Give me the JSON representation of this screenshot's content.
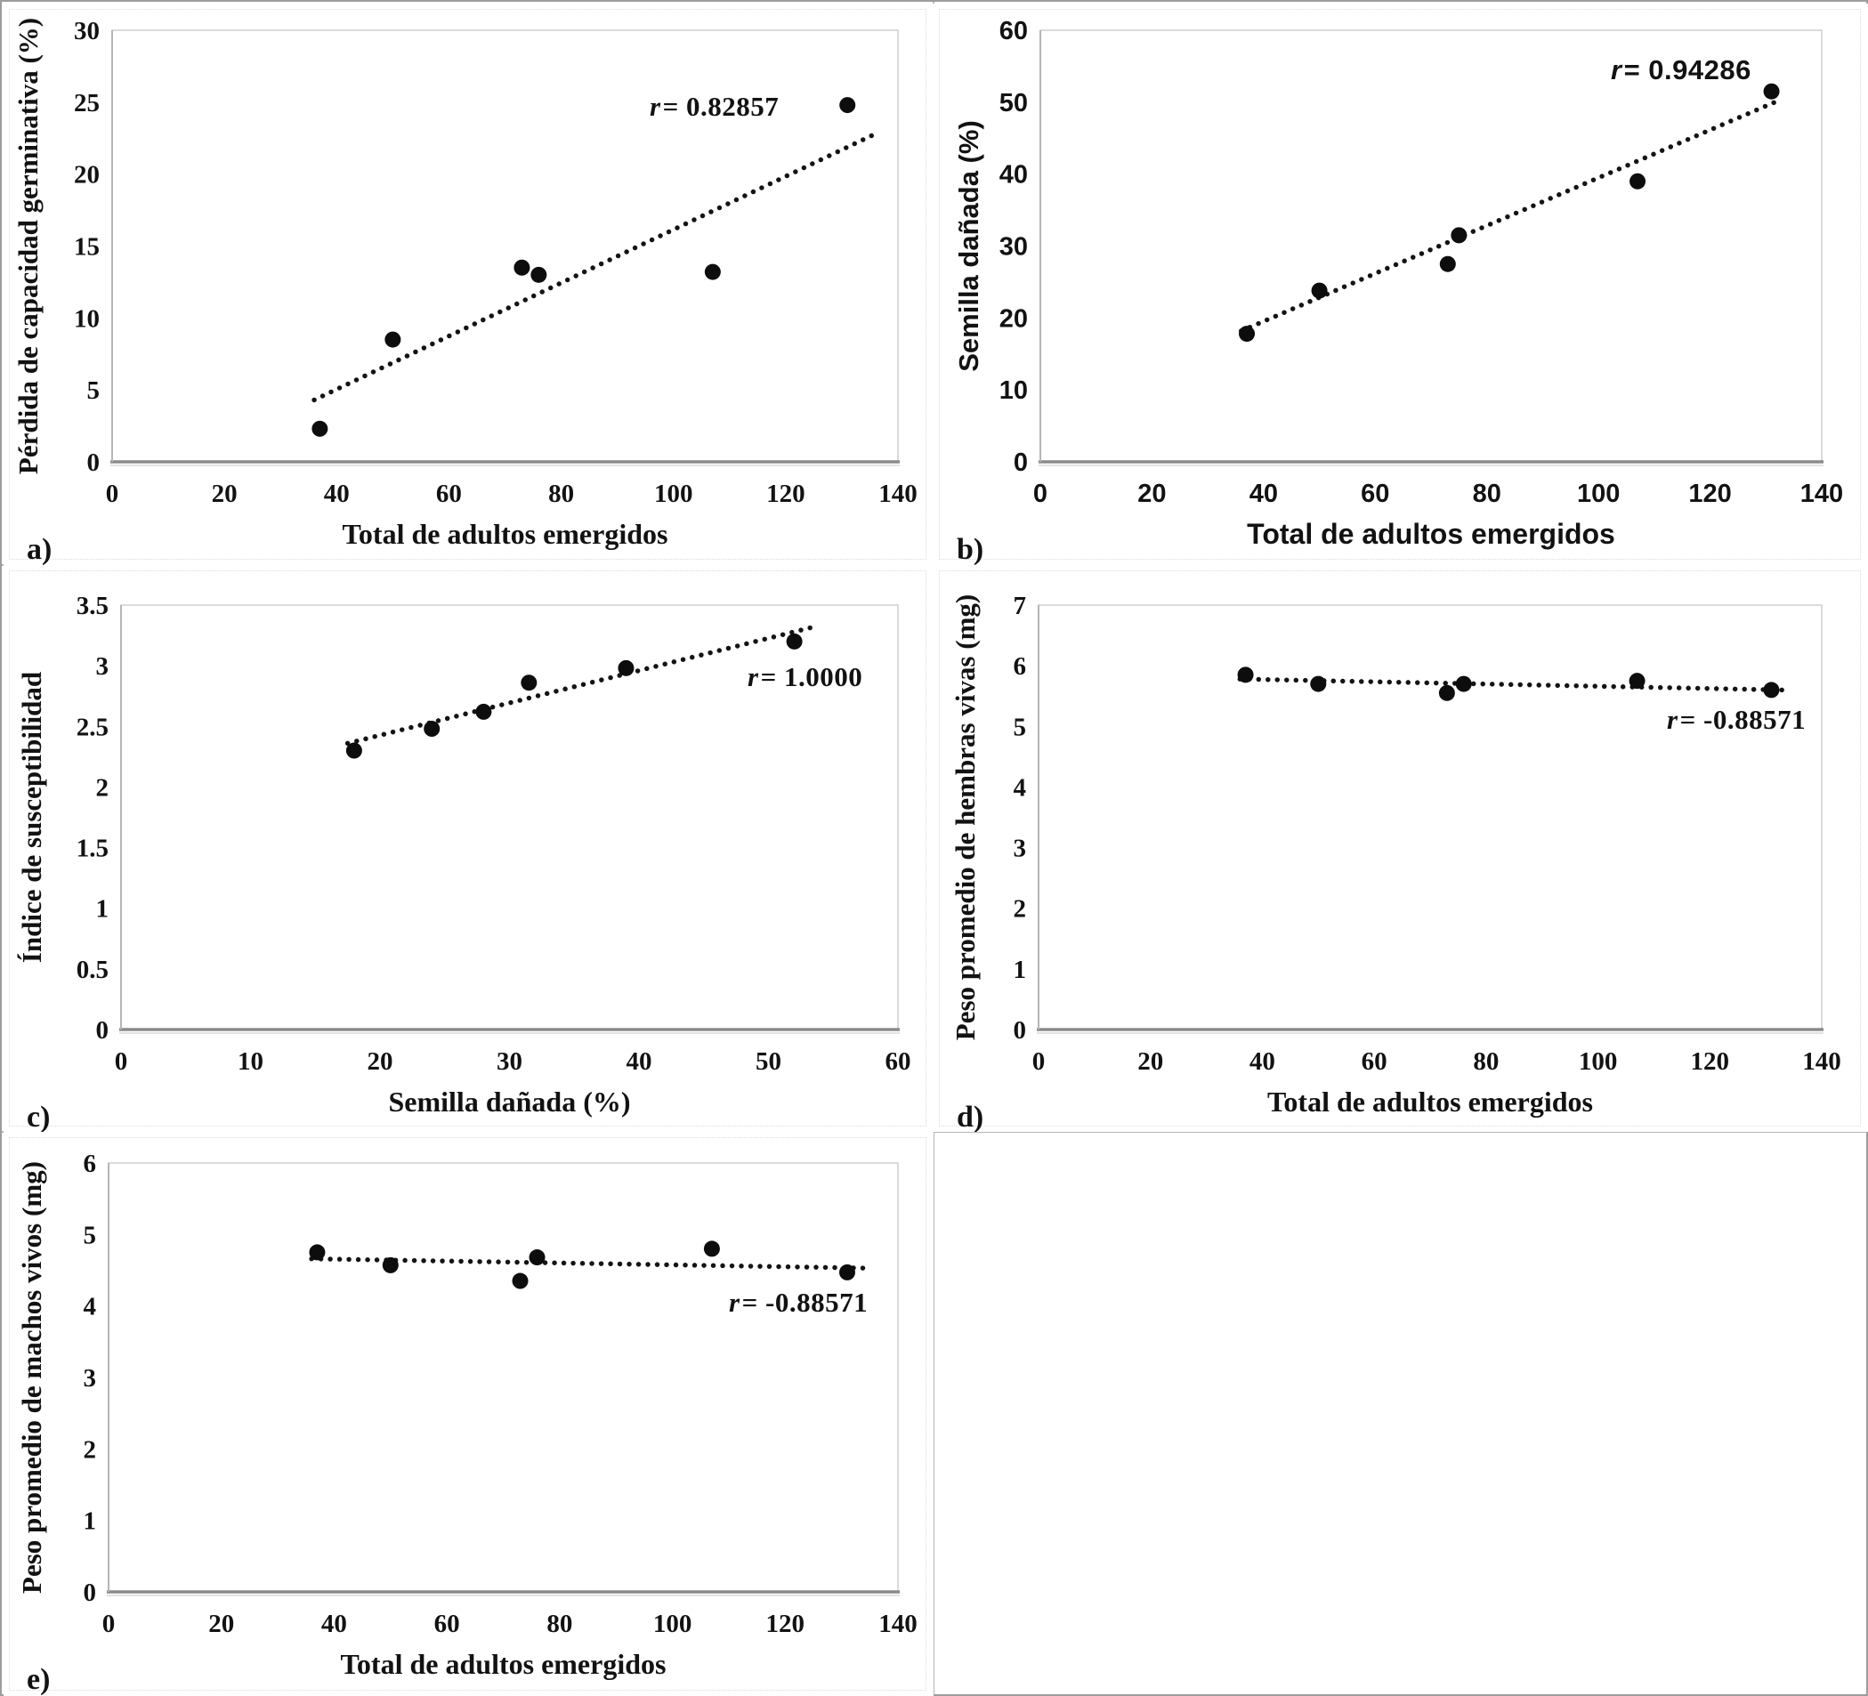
{
  "figure": {
    "colors": {
      "point": "#0d0d0d",
      "trend": "#141414",
      "axis_line": "#8a8a8a",
      "axis_echo": "#d9d9d9",
      "frame": "#cfcfcf",
      "y_axis_line": "#b5b5b5",
      "text": "#121212",
      "divider": "#b5b5b5",
      "background": "#ffffff"
    }
  },
  "chart_data": [
    {
      "panel_label": "a)",
      "type": "scatter",
      "font": "serif",
      "xlabel": "Total de adultos emergidos",
      "ylabel": "Pérdida de capacidad germinativa (%)",
      "r_sym": "r",
      "r_rest": "= 0.82857",
      "r_pos": [
        0.695,
        0.155
      ],
      "xlim": [
        0,
        140
      ],
      "ylim": [
        0,
        30
      ],
      "xticks": [
        0,
        20,
        40,
        60,
        80,
        100,
        120,
        140
      ],
      "yticks": [
        0,
        5,
        10,
        15,
        20,
        25,
        30
      ],
      "x": [
        37,
        50,
        73,
        76,
        107,
        131
      ],
      "y": [
        2.3,
        8.5,
        13.5,
        13.0,
        13.2,
        24.8
      ],
      "trend": [
        [
          36,
          4.3
        ],
        [
          136,
          22.8
        ]
      ],
      "grid": false,
      "legend": "none"
    },
    {
      "panel_label": "b)",
      "type": "scatter",
      "font": "sans",
      "xlabel": "Total de adultos emergidos",
      "ylabel": "Semilla dañada (%)",
      "r_sym": "r",
      "r_rest": "= 0.94286",
      "r_pos": [
        0.725,
        0.09
      ],
      "xlim": [
        0,
        140
      ],
      "ylim": [
        0,
        60
      ],
      "xticks": [
        0,
        20,
        40,
        60,
        80,
        100,
        120,
        140
      ],
      "yticks": [
        0,
        10,
        20,
        30,
        40,
        50,
        60
      ],
      "x": [
        37,
        50,
        73,
        75,
        107,
        131
      ],
      "y": [
        17.8,
        23.8,
        27.5,
        31.5,
        39.0,
        51.5
      ],
      "trend": [
        [
          36,
          18.2
        ],
        [
          132.5,
          50.3
        ]
      ],
      "grid": false,
      "legend": "none"
    },
    {
      "panel_label": "c)",
      "type": "scatter",
      "font": "serif",
      "xlabel": "Semilla dañada (%)",
      "ylabel": "Índice de susceptibilidad",
      "r_sym": "r",
      "r_rest": "= 1.0000",
      "r_pos": [
        0.8,
        0.17
      ],
      "xlim": [
        0,
        60
      ],
      "ylim": [
        0,
        3.5
      ],
      "xticks": [
        0,
        10,
        20,
        30,
        40,
        50,
        60
      ],
      "yticks": [
        0,
        0.5,
        1,
        1.5,
        2,
        2.5,
        3,
        3.5
      ],
      "x": [
        18,
        24,
        28,
        31.5,
        39,
        52
      ],
      "y": [
        2.3,
        2.48,
        2.62,
        2.86,
        2.98,
        3.2
      ],
      "trend": [
        [
          17.5,
          2.36
        ],
        [
          53.5,
          3.32
        ]
      ],
      "grid": false,
      "legend": "none"
    },
    {
      "panel_label": "d)",
      "type": "scatter",
      "font": "serif",
      "xlabel": "Total de adultos emergidos",
      "ylabel": "Peso promedio de hembras vivas (mg)",
      "r_sym": "r",
      "r_rest": "= -0.88571",
      "r_pos": [
        0.785,
        0.245
      ],
      "xlim": [
        0,
        140
      ],
      "ylim": [
        0,
        7
      ],
      "xticks": [
        0,
        20,
        40,
        60,
        80,
        100,
        120,
        140
      ],
      "yticks": [
        0,
        1,
        2,
        3,
        4,
        5,
        6,
        7
      ],
      "x": [
        37,
        50,
        73,
        76,
        107,
        131
      ],
      "y": [
        5.85,
        5.7,
        5.55,
        5.7,
        5.75,
        5.6
      ],
      "trend": [
        [
          36,
          5.78
        ],
        [
          133,
          5.6
        ]
      ],
      "grid": false,
      "legend": "none"
    },
    {
      "panel_label": "e)",
      "type": "scatter",
      "font": "serif",
      "xlabel": "Total de adultos emergidos",
      "ylabel": "Peso promedio de machos vivos (mg)",
      "r_sym": "r",
      "r_rest": "= -0.88571",
      "r_pos": [
        0.78,
        0.275
      ],
      "xlim": [
        0,
        140
      ],
      "ylim": [
        0,
        6
      ],
      "xticks": [
        0,
        20,
        40,
        60,
        80,
        100,
        120,
        140
      ],
      "yticks": [
        0,
        1,
        2,
        3,
        4,
        5,
        6
      ],
      "x": [
        37,
        50,
        73,
        76,
        107,
        131
      ],
      "y": [
        4.75,
        4.57,
        4.35,
        4.68,
        4.8,
        4.47
      ],
      "trend": [
        [
          36,
          4.66
        ],
        [
          134,
          4.53
        ]
      ],
      "grid": false,
      "legend": "none"
    }
  ]
}
